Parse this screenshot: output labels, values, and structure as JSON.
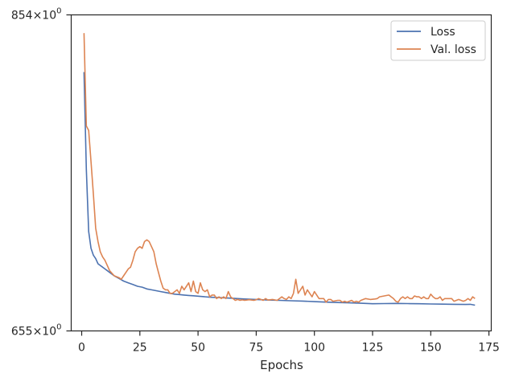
{
  "chart_data": {
    "type": "line",
    "title": "",
    "xlabel": "Epochs",
    "ylabel": "",
    "log_y": true,
    "xlim": [
      -4.5,
      176
    ],
    "ylim": [
      655,
      854
    ],
    "xticks": [
      0,
      25,
      50,
      75,
      100,
      125,
      150,
      175
    ],
    "xtick_labels": [
      "0",
      "25",
      "50",
      "75",
      "100",
      "125",
      "150",
      "175"
    ],
    "ytick_labels": [
      {
        "value": 854,
        "mantissa": "854",
        "exponent": "0"
      },
      {
        "value": 655,
        "mantissa": "655",
        "exponent": "0"
      }
    ],
    "grid": false,
    "legend_position": "upper right",
    "series": [
      {
        "name": "Loss",
        "color": "#4c72b0",
        "points": [
          [
            1,
            814
          ],
          [
            2,
            750
          ],
          [
            3,
            712
          ],
          [
            4,
            702
          ],
          [
            5,
            698
          ],
          [
            6,
            696
          ],
          [
            7,
            693
          ],
          [
            8,
            692
          ],
          [
            9,
            691
          ],
          [
            10,
            690
          ],
          [
            12,
            688
          ],
          [
            14,
            686
          ],
          [
            16,
            684.5
          ],
          [
            18,
            683
          ],
          [
            20,
            682
          ],
          [
            22,
            681
          ],
          [
            24,
            680
          ],
          [
            26,
            679.5
          ],
          [
            28,
            678.5
          ],
          [
            30,
            678
          ],
          [
            32,
            677.5
          ],
          [
            34,
            677
          ],
          [
            36,
            676.5
          ],
          [
            38,
            676
          ],
          [
            40,
            675.5
          ],
          [
            42,
            675.3
          ],
          [
            44,
            675
          ],
          [
            46,
            674.8
          ],
          [
            48,
            674.6
          ],
          [
            50,
            674.4
          ],
          [
            55,
            673.8
          ],
          [
            60,
            673.5
          ],
          [
            65,
            673.2
          ],
          [
            70,
            672.8
          ],
          [
            75,
            672.5
          ],
          [
            80,
            672.2
          ],
          [
            85,
            672
          ],
          [
            90,
            671.8
          ],
          [
            95,
            671.6
          ],
          [
            100,
            671.3
          ],
          [
            105,
            671
          ],
          [
            110,
            670.8
          ],
          [
            115,
            670.6
          ],
          [
            120,
            670.4
          ],
          [
            125,
            670.1
          ],
          [
            130,
            670.2
          ],
          [
            135,
            670.3
          ],
          [
            140,
            670.2
          ],
          [
            145,
            670.1
          ],
          [
            150,
            670
          ],
          [
            155,
            669.9
          ],
          [
            160,
            669.8
          ],
          [
            165,
            669.7
          ],
          [
            167,
            669.8
          ],
          [
            169,
            669.3
          ]
        ]
      },
      {
        "name": "Val. loss",
        "color": "#dd8452",
        "points": [
          [
            1,
            841
          ],
          [
            2,
            778
          ],
          [
            3,
            775
          ],
          [
            4,
            755
          ],
          [
            5,
            735
          ],
          [
            6,
            714
          ],
          [
            7,
            706
          ],
          [
            8,
            700
          ],
          [
            9,
            697
          ],
          [
            10,
            695
          ],
          [
            11,
            692
          ],
          [
            12,
            689
          ],
          [
            14,
            686
          ],
          [
            16,
            685
          ],
          [
            17,
            684
          ],
          [
            18,
            686
          ],
          [
            20,
            690
          ],
          [
            21,
            691
          ],
          [
            22,
            695
          ],
          [
            23,
            700
          ],
          [
            24,
            702
          ],
          [
            25,
            703
          ],
          [
            26,
            702
          ],
          [
            27,
            706
          ],
          [
            28,
            707
          ],
          [
            29,
            706
          ],
          [
            30,
            703
          ],
          [
            31,
            700
          ],
          [
            32,
            693
          ],
          [
            33,
            688
          ],
          [
            34,
            683
          ],
          [
            35,
            679
          ],
          [
            36,
            678
          ],
          [
            37,
            678
          ],
          [
            38,
            676
          ],
          [
            39,
            676
          ],
          [
            40,
            677
          ],
          [
            41,
            678
          ],
          [
            42,
            676
          ],
          [
            43,
            680
          ],
          [
            44,
            678
          ],
          [
            45,
            680
          ],
          [
            46,
            682
          ],
          [
            47,
            677
          ],
          [
            48,
            683
          ],
          [
            49,
            677
          ],
          [
            50,
            676
          ],
          [
            51,
            682
          ],
          [
            52,
            678
          ],
          [
            53,
            677
          ],
          [
            54,
            678
          ],
          [
            55,
            674
          ],
          [
            56,
            675
          ],
          [
            57,
            675
          ],
          [
            58,
            673
          ],
          [
            59,
            674
          ],
          [
            60,
            673
          ],
          [
            61,
            674
          ],
          [
            62,
            673
          ],
          [
            63,
            677
          ],
          [
            64,
            674
          ],
          [
            65,
            673
          ],
          [
            66,
            672
          ],
          [
            67,
            672.5
          ],
          [
            68,
            672
          ],
          [
            69,
            672.3
          ],
          [
            70,
            672
          ],
          [
            72,
            672.4
          ],
          [
            74,
            672
          ],
          [
            75,
            672.4
          ],
          [
            76,
            673
          ],
          [
            77,
            672.5
          ],
          [
            78,
            672
          ],
          [
            79,
            673
          ],
          [
            80,
            672.2
          ],
          [
            82,
            672.5
          ],
          [
            84,
            672
          ],
          [
            86,
            674
          ],
          [
            87,
            673
          ],
          [
            88,
            672.5
          ],
          [
            89,
            674
          ],
          [
            90,
            673
          ],
          [
            91,
            676
          ],
          [
            92,
            684
          ],
          [
            93,
            676
          ],
          [
            94,
            678
          ],
          [
            95,
            680
          ],
          [
            96,
            675
          ],
          [
            97,
            678
          ],
          [
            98,
            676
          ],
          [
            99,
            674
          ],
          [
            100,
            677
          ],
          [
            101,
            675
          ],
          [
            102,
            673
          ],
          [
            103,
            673
          ],
          [
            104,
            673
          ],
          [
            105,
            671
          ],
          [
            106,
            672.5
          ],
          [
            107,
            672.5
          ],
          [
            108,
            671.5
          ],
          [
            110,
            672
          ],
          [
            111,
            672
          ],
          [
            112,
            671
          ],
          [
            113,
            671.5
          ],
          [
            114,
            671
          ],
          [
            115,
            671.5
          ],
          [
            116,
            672
          ],
          [
            117,
            671
          ],
          [
            118,
            671.5
          ],
          [
            119,
            671
          ],
          [
            120,
            672
          ],
          [
            122,
            673
          ],
          [
            124,
            672.5
          ],
          [
            126,
            672.8
          ],
          [
            127,
            673
          ],
          [
            128,
            674
          ],
          [
            130,
            674.5
          ],
          [
            132,
            675
          ],
          [
            133,
            674
          ],
          [
            134,
            673
          ],
          [
            135,
            671.5
          ],
          [
            136,
            671
          ],
          [
            137,
            673
          ],
          [
            138,
            674
          ],
          [
            139,
            673
          ],
          [
            140,
            674
          ],
          [
            141,
            673
          ],
          [
            142,
            673
          ],
          [
            143,
            674.5
          ],
          [
            144,
            674
          ],
          [
            145,
            674
          ],
          [
            146,
            673
          ],
          [
            147,
            674
          ],
          [
            148,
            673
          ],
          [
            149,
            673
          ],
          [
            150,
            675.5
          ],
          [
            151,
            674
          ],
          [
            152,
            673
          ],
          [
            153,
            673
          ],
          [
            154,
            674
          ],
          [
            155,
            672
          ],
          [
            156,
            673
          ],
          [
            157,
            673
          ],
          [
            158,
            673
          ],
          [
            159,
            673
          ],
          [
            160,
            671.5
          ],
          [
            162,
            672.5
          ],
          [
            163,
            672
          ],
          [
            164,
            671.5
          ],
          [
            165,
            672
          ],
          [
            166,
            673
          ],
          [
            167,
            672
          ],
          [
            168,
            674
          ],
          [
            169,
            673
          ]
        ]
      }
    ]
  }
}
